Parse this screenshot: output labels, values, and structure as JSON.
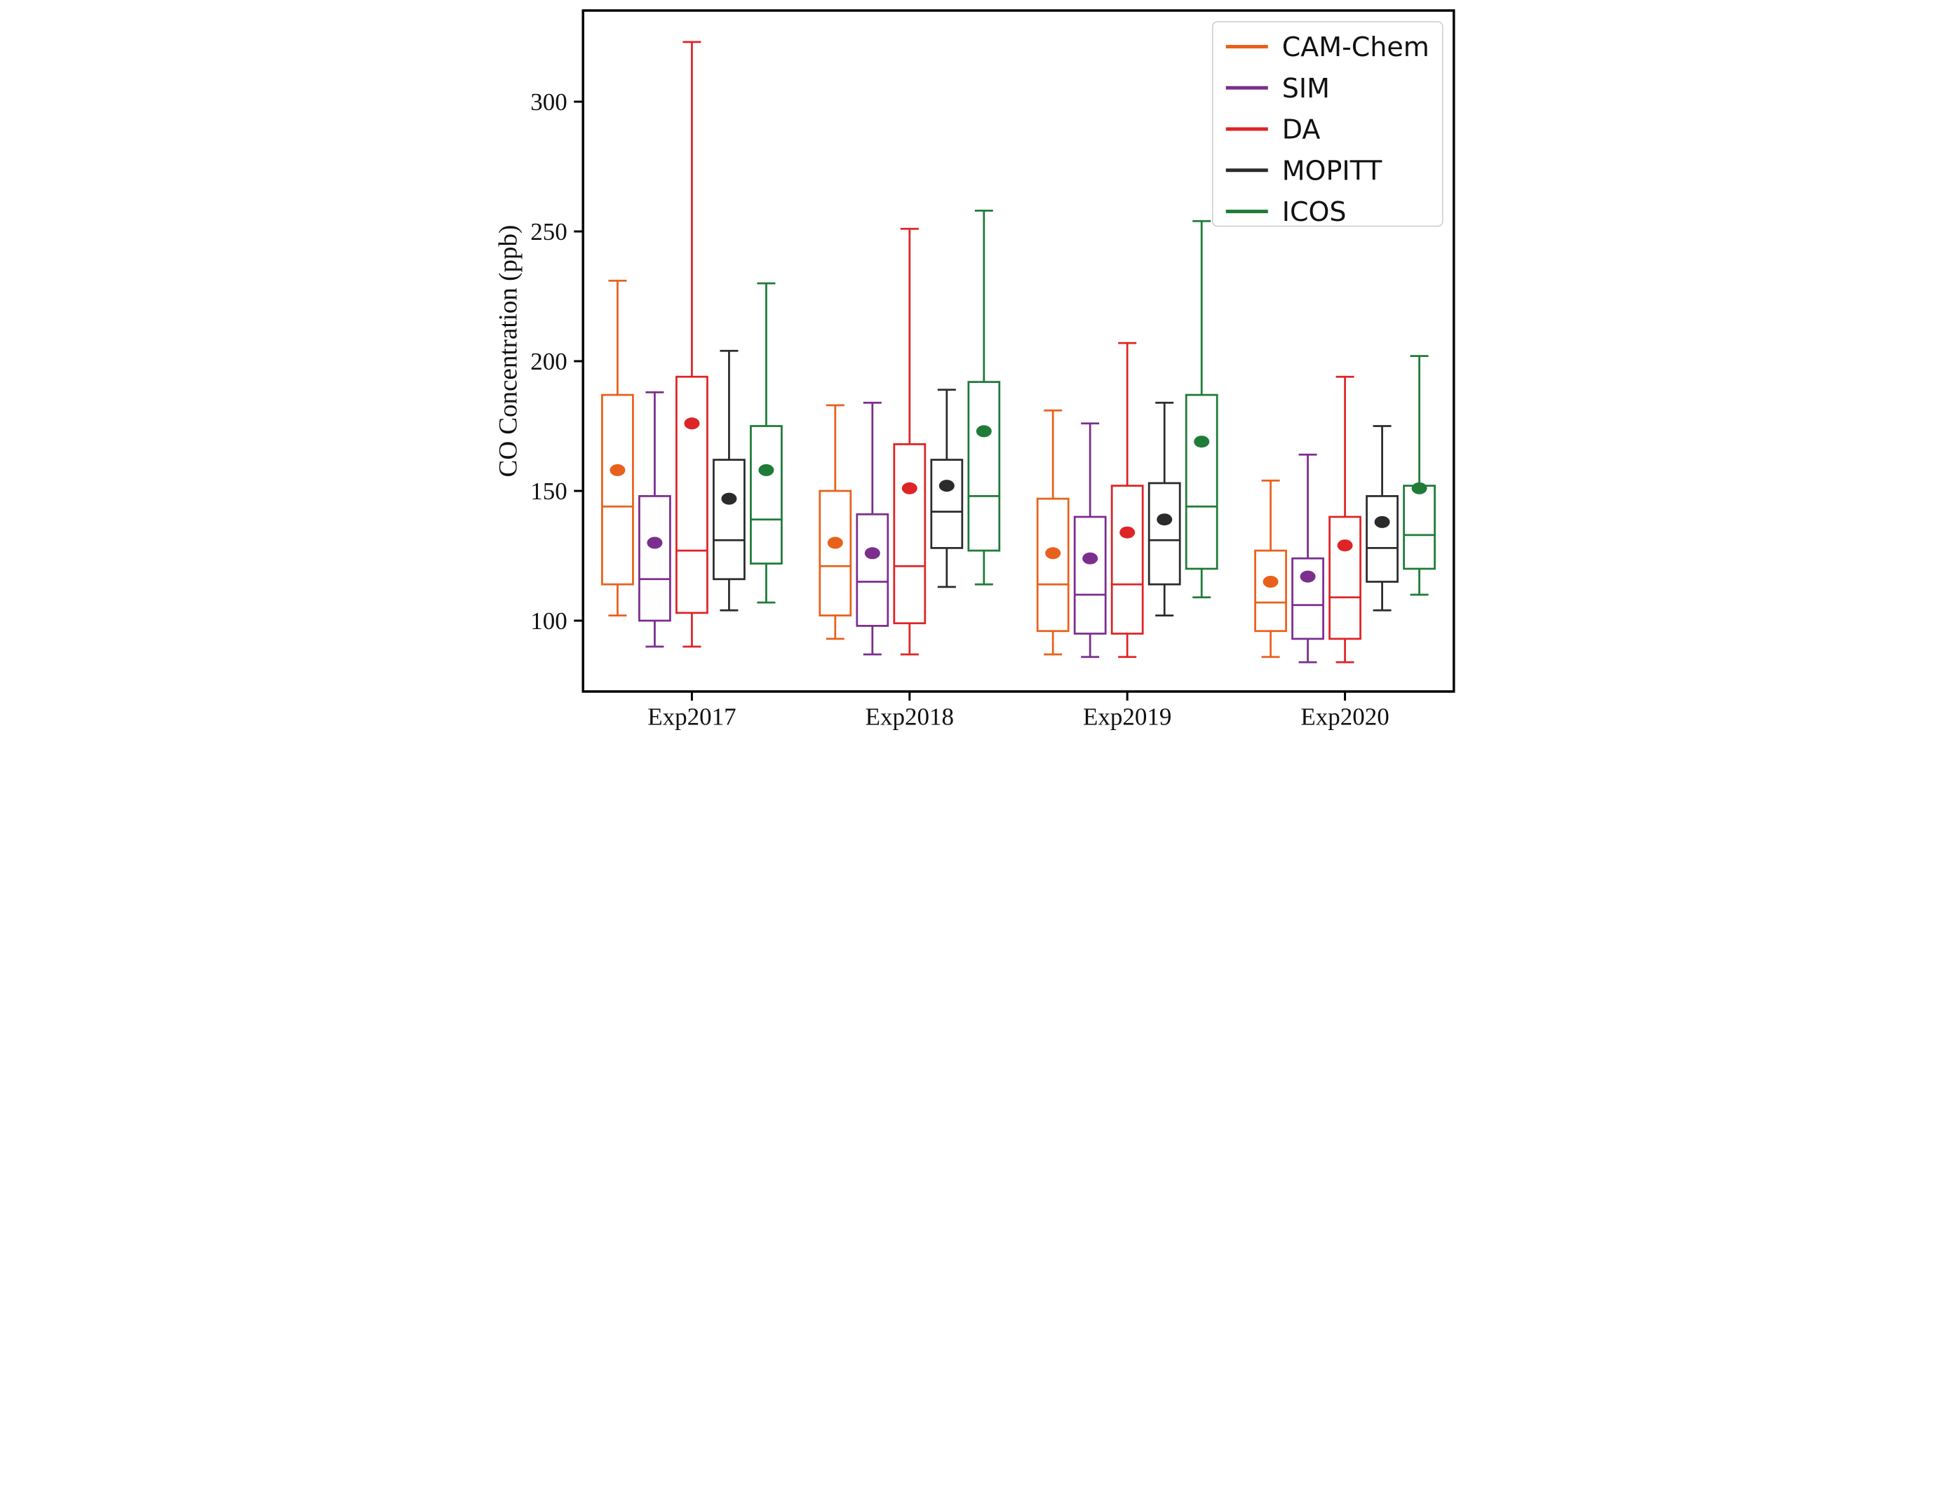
{
  "chart_data": {
    "type": "box",
    "title": "",
    "xlabel": "",
    "ylabel": "CO Concentration (ppb)",
    "ylim": [
      73,
      335
    ],
    "yticks": [
      100,
      150,
      200,
      250,
      300
    ],
    "grid": false,
    "frame": true,
    "legend_position": "upper right",
    "categories": [
      "Exp2017",
      "Exp2018",
      "Exp2019",
      "Exp2020"
    ],
    "series": [
      {
        "name": "CAM-Chem",
        "color": "#E8611C",
        "boxes": [
          {
            "whislo": 102,
            "q1": 114,
            "med": 144,
            "q3": 187,
            "whishi": 231,
            "mean": 158
          },
          {
            "whislo": 93,
            "q1": 102,
            "med": 121,
            "q3": 150,
            "whishi": 183,
            "mean": 130
          },
          {
            "whislo": 87,
            "q1": 96,
            "med": 114,
            "q3": 147,
            "whishi": 181,
            "mean": 126
          },
          {
            "whislo": 86,
            "q1": 96,
            "med": 107,
            "q3": 127,
            "whishi": 154,
            "mean": 115
          }
        ]
      },
      {
        "name": "SIM",
        "color": "#7B2E8E",
        "boxes": [
          {
            "whislo": 90,
            "q1": 100,
            "med": 116,
            "q3": 148,
            "whishi": 188,
            "mean": 130
          },
          {
            "whislo": 87,
            "q1": 98,
            "med": 115,
            "q3": 141,
            "whishi": 184,
            "mean": 126
          },
          {
            "whislo": 86,
            "q1": 95,
            "med": 110,
            "q3": 140,
            "whishi": 176,
            "mean": 124
          },
          {
            "whislo": 84,
            "q1": 93,
            "med": 106,
            "q3": 124,
            "whishi": 164,
            "mean": 117
          }
        ]
      },
      {
        "name": "DA",
        "color": "#DE2426",
        "boxes": [
          {
            "whislo": 90,
            "q1": 103,
            "med": 127,
            "q3": 194,
            "whishi": 323,
            "mean": 176
          },
          {
            "whislo": 87,
            "q1": 99,
            "med": 121,
            "q3": 168,
            "whishi": 251,
            "mean": 151
          },
          {
            "whislo": 86,
            "q1": 95,
            "med": 114,
            "q3": 152,
            "whishi": 207,
            "mean": 134
          },
          {
            "whislo": 84,
            "q1": 93,
            "med": 109,
            "q3": 140,
            "whishi": 194,
            "mean": 129
          }
        ]
      },
      {
        "name": "MOPITT",
        "color": "#2B2B2B",
        "boxes": [
          {
            "whislo": 104,
            "q1": 116,
            "med": 131,
            "q3": 162,
            "whishi": 204,
            "mean": 147
          },
          {
            "whislo": 113,
            "q1": 128,
            "med": 142,
            "q3": 162,
            "whishi": 189,
            "mean": 152
          },
          {
            "whislo": 102,
            "q1": 114,
            "med": 131,
            "q3": 153,
            "whishi": 184,
            "mean": 139
          },
          {
            "whislo": 104,
            "q1": 115,
            "med": 128,
            "q3": 148,
            "whishi": 175,
            "mean": 138
          }
        ]
      },
      {
        "name": "ICOS",
        "color": "#1E7B38",
        "boxes": [
          {
            "whislo": 107,
            "q1": 122,
            "med": 139,
            "q3": 175,
            "whishi": 230,
            "mean": 158
          },
          {
            "whislo": 114,
            "q1": 127,
            "med": 148,
            "q3": 192,
            "whishi": 258,
            "mean": 173
          },
          {
            "whislo": 109,
            "q1": 120,
            "med": 144,
            "q3": 187,
            "whishi": 254,
            "mean": 169
          },
          {
            "whislo": 110,
            "q1": 120,
            "med": 133,
            "q3": 152,
            "whishi": 202,
            "mean": 151
          }
        ]
      }
    ]
  }
}
